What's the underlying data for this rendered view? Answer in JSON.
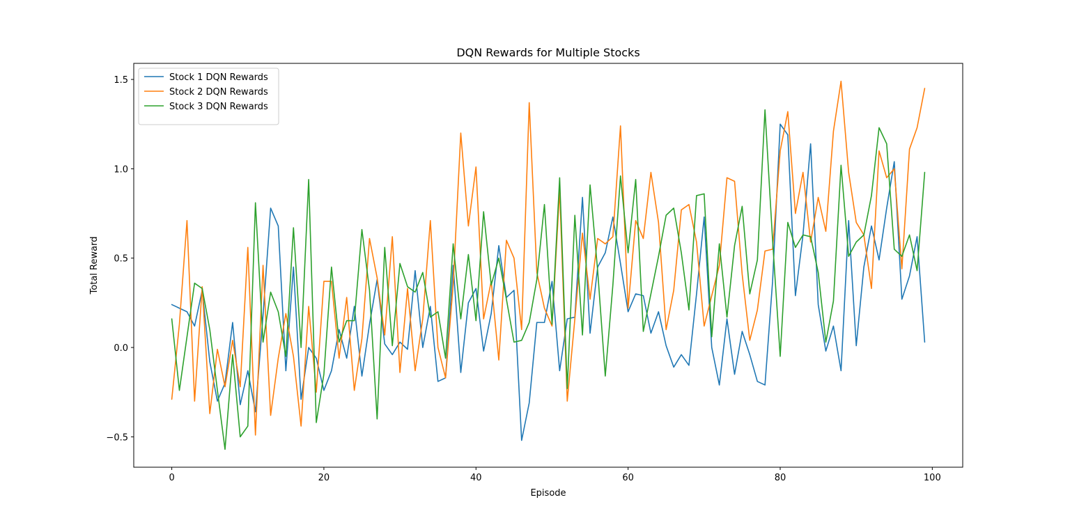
{
  "chart_data": {
    "type": "line",
    "title": "DQN Rewards for Multiple Stocks",
    "xlabel": "Episode",
    "ylabel": "Total Reward",
    "xlim": [
      -5,
      104
    ],
    "ylim": [
      -0.67,
      1.59
    ],
    "xticks": [
      0,
      20,
      40,
      60,
      80,
      100
    ],
    "xtick_labels": [
      "0",
      "20",
      "40",
      "60",
      "80",
      "100"
    ],
    "yticks": [
      -0.5,
      0.0,
      0.5,
      1.0,
      1.5
    ],
    "ytick_labels": [
      "−0.5",
      "0.0",
      "0.5",
      "1.0",
      "1.5"
    ],
    "grid": false,
    "legend_position": "top-left",
    "x": [
      0,
      1,
      2,
      3,
      4,
      5,
      6,
      7,
      8,
      9,
      10,
      11,
      12,
      13,
      14,
      15,
      16,
      17,
      18,
      19,
      20,
      21,
      22,
      23,
      24,
      25,
      26,
      27,
      28,
      29,
      30,
      31,
      32,
      33,
      34,
      35,
      36,
      37,
      38,
      39,
      40,
      41,
      42,
      43,
      44,
      45,
      46,
      47,
      48,
      49,
      50,
      51,
      52,
      53,
      54,
      55,
      56,
      57,
      58,
      59,
      60,
      61,
      62,
      63,
      64,
      65,
      66,
      67,
      68,
      69,
      70,
      71,
      72,
      73,
      74,
      75,
      76,
      77,
      78,
      79,
      80,
      81,
      82,
      83,
      84,
      85,
      86,
      87,
      88,
      89,
      90,
      91,
      92,
      93,
      94,
      95,
      96,
      97,
      98,
      99
    ],
    "series": [
      {
        "name": "Stock 1 DQN Rewards",
        "color": "#1f77b4",
        "values": [
          0.24,
          0.22,
          0.2,
          0.12,
          0.32,
          -0.08,
          -0.3,
          -0.2,
          0.14,
          -0.32,
          -0.13,
          -0.36,
          0.18,
          0.78,
          0.68,
          -0.13,
          0.45,
          -0.29,
          0.0,
          -0.06,
          -0.24,
          -0.13,
          0.1,
          -0.06,
          0.23,
          -0.16,
          0.13,
          0.38,
          0.02,
          -0.04,
          0.03,
          -0.01,
          0.43,
          0.0,
          0.23,
          -0.19,
          -0.17,
          0.46,
          -0.14,
          0.25,
          0.33,
          -0.02,
          0.19,
          0.57,
          0.28,
          0.32,
          -0.52,
          -0.31,
          0.14,
          0.14,
          0.37,
          -0.13,
          0.16,
          0.17,
          0.84,
          0.08,
          0.45,
          0.53,
          0.73,
          0.47,
          0.2,
          0.3,
          0.29,
          0.08,
          0.2,
          0.01,
          -0.11,
          -0.04,
          -0.1,
          0.3,
          0.73,
          0.0,
          -0.21,
          0.16,
          -0.15,
          0.09,
          -0.04,
          -0.19,
          -0.21,
          0.37,
          1.25,
          1.19,
          0.29,
          0.63,
          1.14,
          0.24,
          -0.02,
          0.12,
          -0.13,
          0.71,
          0.01,
          0.45,
          0.68,
          0.49,
          0.78,
          1.04,
          0.27,
          0.4,
          0.62,
          0.03
        ]
      },
      {
        "name": "Stock 2 DQN Rewards",
        "color": "#ff7f0e",
        "values": [
          -0.29,
          0.13,
          0.71,
          -0.3,
          0.34,
          -0.37,
          -0.01,
          -0.22,
          0.04,
          -0.22,
          0.56,
          -0.49,
          0.46,
          -0.38,
          -0.06,
          0.19,
          -0.05,
          -0.44,
          0.23,
          -0.25,
          0.37,
          0.37,
          -0.06,
          0.28,
          -0.24,
          0.05,
          0.61,
          0.39,
          0.07,
          0.62,
          -0.14,
          0.33,
          -0.13,
          0.16,
          0.71,
          0.0,
          -0.17,
          0.35,
          1.2,
          0.68,
          1.01,
          0.16,
          0.37,
          -0.07,
          0.6,
          0.5,
          0.1,
          1.37,
          0.42,
          0.22,
          0.12,
          0.88,
          -0.3,
          0.16,
          0.64,
          0.27,
          0.61,
          0.58,
          0.62,
          1.24,
          0.22,
          0.71,
          0.61,
          0.98,
          0.7,
          0.1,
          0.32,
          0.77,
          0.8,
          0.59,
          0.12,
          0.29,
          0.46,
          0.95,
          0.93,
          0.41,
          0.04,
          0.21,
          0.54,
          0.55,
          1.1,
          1.32,
          0.75,
          0.98,
          0.59,
          0.84,
          0.65,
          1.21,
          1.49,
          0.98,
          0.7,
          0.63,
          0.33,
          1.1,
          0.95,
          1.0,
          0.44,
          1.11,
          1.23,
          1.45
        ]
      },
      {
        "name": "Stock 3 DQN Rewards",
        "color": "#2ca02c",
        "values": [
          0.16,
          -0.24,
          0.06,
          0.36,
          0.33,
          0.1,
          -0.24,
          -0.57,
          -0.04,
          -0.5,
          -0.44,
          0.81,
          0.03,
          0.31,
          0.2,
          -0.05,
          0.67,
          0.0,
          0.94,
          -0.42,
          -0.15,
          0.45,
          0.03,
          0.15,
          0.15,
          0.66,
          0.32,
          -0.4,
          0.56,
          0.01,
          0.47,
          0.34,
          0.31,
          0.42,
          0.17,
          0.2,
          -0.06,
          0.58,
          0.16,
          0.52,
          0.15,
          0.76,
          0.35,
          0.5,
          0.27,
          0.03,
          0.04,
          0.14,
          0.38,
          0.8,
          0.13,
          0.95,
          -0.23,
          0.74,
          0.07,
          0.91,
          0.43,
          -0.16,
          0.35,
          0.96,
          0.53,
          0.94,
          0.09,
          0.3,
          0.51,
          0.74,
          0.78,
          0.53,
          0.21,
          0.85,
          0.86,
          0.06,
          0.58,
          0.17,
          0.57,
          0.79,
          0.3,
          0.49,
          1.33,
          0.6,
          -0.05,
          0.7,
          0.56,
          0.63,
          0.62,
          0.42,
          0.03,
          0.26,
          1.02,
          0.51,
          0.59,
          0.63,
          0.85,
          1.23,
          1.14,
          0.55,
          0.51,
          0.63,
          0.43,
          0.98
        ]
      }
    ]
  }
}
